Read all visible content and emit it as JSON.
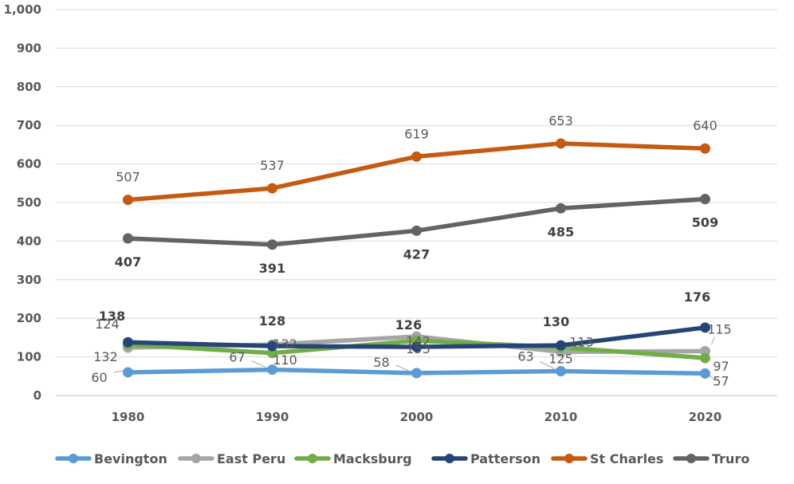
{
  "chart_data": {
    "type": "line",
    "title": "",
    "xlabel": "",
    "ylabel": "",
    "categories": [
      "1980",
      "1990",
      "2000",
      "2010",
      "2020"
    ],
    "ylim": [
      0,
      1000
    ],
    "yticks": [
      "0",
      "100",
      "200",
      "300",
      "400",
      "500",
      "600",
      "700",
      "800",
      "900",
      "1,000"
    ],
    "grid": true,
    "legend_position": "bottom",
    "series": [
      {
        "name": "Bevington",
        "color": "#5B9BD5",
        "values": [
          60,
          67,
          58,
          63,
          57
        ],
        "labels": [
          "60",
          "67",
          "58",
          "63",
          "57"
        ]
      },
      {
        "name": "East Peru",
        "color": "#A5A5A5",
        "values": [
          124,
          132,
          153,
          113,
          115
        ],
        "labels": [
          "124",
          "132",
          "153",
          "113",
          "115"
        ]
      },
      {
        "name": "Macksburg",
        "color": "#70AD47",
        "values": [
          132,
          110,
          142,
          125,
          97
        ],
        "labels": [
          "132",
          "110",
          "142",
          "125",
          "97"
        ]
      },
      {
        "name": "Patterson",
        "color": "#264478",
        "values": [
          138,
          128,
          126,
          130,
          176
        ],
        "labels": [
          "138",
          "128",
          "126",
          "130",
          "176"
        ]
      },
      {
        "name": "St Charles",
        "color": "#C55A11",
        "values": [
          507,
          537,
          619,
          653,
          640
        ],
        "labels": [
          "507",
          "537",
          "619",
          "653",
          "640"
        ]
      },
      {
        "name": "Truro",
        "color": "#636363",
        "values": [
          407,
          391,
          427,
          485,
          509
        ],
        "labels": [
          "407",
          "391",
          "427",
          "485",
          "509"
        ]
      }
    ]
  }
}
